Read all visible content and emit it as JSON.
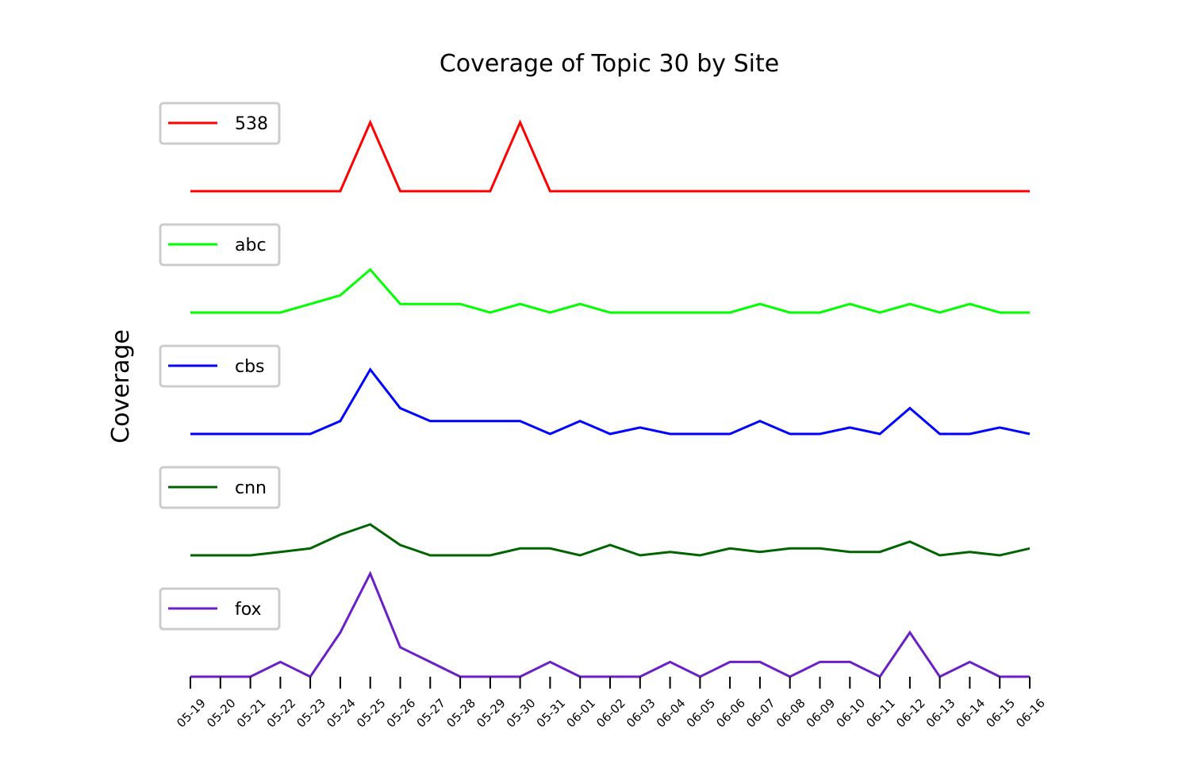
{
  "chart_data": {
    "type": "line",
    "title": "Coverage of Topic 30 by Site",
    "ylabel": "Coverage",
    "xlabel": "",
    "x": [
      "05-19",
      "05-20",
      "05-21",
      "05-22",
      "05-23",
      "05-24",
      "05-25",
      "05-26",
      "05-27",
      "05-28",
      "05-29",
      "05-30",
      "05-31",
      "06-01",
      "06-02",
      "06-03",
      "06-04",
      "06-05",
      "06-06",
      "06-07",
      "06-08",
      "06-09",
      "06-10",
      "06-11",
      "06-12",
      "06-13",
      "06-14",
      "06-15",
      "06-16"
    ],
    "layout": "stacked-panels",
    "legend_placement": "upper-left of each panel",
    "grid": false,
    "series": [
      {
        "name": "538",
        "color": "#ff0000",
        "ylim": [
          0,
          1.5
        ],
        "values": [
          0,
          0,
          0,
          0,
          0,
          0,
          1,
          0,
          0,
          0,
          0,
          1,
          0,
          0,
          0,
          0,
          0,
          0,
          0,
          0,
          0,
          0,
          0,
          0,
          0,
          0,
          0,
          0,
          0
        ]
      },
      {
        "name": "abc",
        "color": "#00ff00",
        "ylim": [
          0,
          6
        ],
        "values": [
          0,
          0,
          0,
          0,
          0.5,
          1,
          2.5,
          0.5,
          0.5,
          0.5,
          0,
          0.5,
          0,
          0.5,
          0,
          0,
          0,
          0,
          0,
          0.5,
          0,
          0,
          0.5,
          0,
          0.5,
          0,
          0.5,
          0,
          0
        ]
      },
      {
        "name": "cbs",
        "color": "#0000ff",
        "ylim": [
          0,
          8
        ],
        "values": [
          0,
          0,
          0,
          0,
          0,
          1,
          5,
          2,
          1,
          1,
          1,
          1,
          0,
          1,
          0,
          0.5,
          0,
          0,
          0,
          1,
          0,
          0,
          0.5,
          0,
          2,
          0,
          0,
          0.5,
          0
        ]
      },
      {
        "name": "cnn",
        "color": "#006400",
        "ylim": [
          0,
          15
        ],
        "values": [
          0,
          0,
          0,
          0.5,
          1,
          3,
          4.5,
          1.5,
          0,
          0,
          0,
          1,
          1,
          0,
          1.5,
          0,
          0.5,
          0,
          1,
          0.5,
          1,
          1,
          0.5,
          0.5,
          2,
          0,
          0.5,
          0,
          1
        ]
      },
      {
        "name": "fox",
        "color": "#6a1fc8",
        "ylim": [
          0,
          7
        ],
        "values": [
          0,
          0,
          0,
          1,
          0,
          3,
          7,
          2,
          1,
          0,
          0,
          0,
          1,
          0,
          0,
          0,
          1,
          0,
          1,
          1,
          0,
          1,
          1,
          0,
          3,
          0,
          1,
          0,
          0
        ]
      }
    ]
  }
}
